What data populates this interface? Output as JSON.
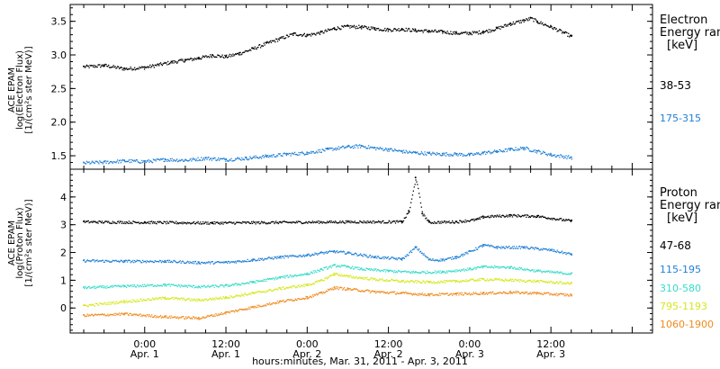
{
  "chart_data": [
    {
      "type": "scatter",
      "panel": "electron",
      "ylabel_lines": [
        "ACE EPAM",
        "log(Electron Flux)",
        "[1/(cm²s ster MeV)]"
      ],
      "ylim": [
        1.3,
        3.75
      ],
      "yticks": [
        1.5,
        2.0,
        2.5,
        3.0,
        3.5
      ],
      "ytick_labels": [
        "1.5",
        "2.0",
        "2.5",
        "3.0",
        "3.5"
      ],
      "legend_title": [
        "Electron",
        "Energy ran",
        "[keV]"
      ],
      "series": [
        {
          "name": "38-53",
          "color": "#000000",
          "points": [
            [
              -9,
              2.83
            ],
            [
              -6,
              2.85
            ],
            [
              -3,
              2.8
            ],
            [
              0,
              2.82
            ],
            [
              2,
              2.86
            ],
            [
              4,
              2.9
            ],
            [
              6,
              2.93
            ],
            [
              8,
              2.96
            ],
            [
              10,
              3.0
            ],
            [
              12,
              2.98
            ],
            [
              14,
              3.03
            ],
            [
              16,
              3.1
            ],
            [
              18,
              3.18
            ],
            [
              20,
              3.25
            ],
            [
              22,
              3.32
            ],
            [
              24,
              3.3
            ],
            [
              26,
              3.34
            ],
            [
              28,
              3.4
            ],
            [
              30,
              3.43
            ],
            [
              32,
              3.42
            ],
            [
              34,
              3.4
            ],
            [
              36,
              3.38
            ],
            [
              38,
              3.39
            ],
            [
              40,
              3.37
            ],
            [
              42,
              3.36
            ],
            [
              44,
              3.35
            ],
            [
              46,
              3.33
            ],
            [
              48,
              3.33
            ],
            [
              50,
              3.35
            ],
            [
              52,
              3.4
            ],
            [
              54,
              3.47
            ],
            [
              56,
              3.52
            ],
            [
              57,
              3.55
            ],
            [
              58,
              3.5
            ],
            [
              60,
              3.42
            ],
            [
              62,
              3.33
            ],
            [
              63,
              3.28
            ]
          ]
        },
        {
          "name": "175-315",
          "color": "#1f7fd6",
          "points": [
            [
              -9,
              1.4
            ],
            [
              -6,
              1.41
            ],
            [
              -3,
              1.43
            ],
            [
              0,
              1.42
            ],
            [
              3,
              1.45
            ],
            [
              6,
              1.44
            ],
            [
              9,
              1.47
            ],
            [
              12,
              1.45
            ],
            [
              15,
              1.47
            ],
            [
              18,
              1.5
            ],
            [
              21,
              1.53
            ],
            [
              24,
              1.55
            ],
            [
              27,
              1.6
            ],
            [
              30,
              1.64
            ],
            [
              32,
              1.65
            ],
            [
              34,
              1.62
            ],
            [
              36,
              1.6
            ],
            [
              38,
              1.57
            ],
            [
              40,
              1.55
            ],
            [
              42,
              1.54
            ],
            [
              44,
              1.53
            ],
            [
              46,
              1.53
            ],
            [
              48,
              1.52
            ],
            [
              50,
              1.55
            ],
            [
              52,
              1.57
            ],
            [
              54,
              1.6
            ],
            [
              56,
              1.62
            ],
            [
              58,
              1.57
            ],
            [
              60,
              1.52
            ],
            [
              63,
              1.48
            ]
          ]
        }
      ]
    },
    {
      "type": "scatter",
      "panel": "proton",
      "ylabel_lines": [
        "ACE EPAM",
        "log(Proton Flux)",
        "[1/(cm²s ster MeV)]"
      ],
      "ylim": [
        -0.9,
        5.0
      ],
      "yticks": [
        0,
        1,
        2,
        3,
        4
      ],
      "ytick_labels": [
        "0",
        "1",
        "2",
        "3",
        "4"
      ],
      "legend_title": [
        "Proton",
        "Energy ran",
        "[keV]"
      ],
      "series": [
        {
          "name": "47-68",
          "color": "#000000",
          "points": [
            [
              -9,
              3.12
            ],
            [
              0,
              3.1
            ],
            [
              10,
              3.08
            ],
            [
              20,
              3.1
            ],
            [
              30,
              3.12
            ],
            [
              38,
              3.12
            ],
            [
              39,
              3.5
            ],
            [
              40,
              4.7
            ],
            [
              41,
              3.4
            ],
            [
              42,
              3.1
            ],
            [
              46,
              3.12
            ],
            [
              49,
              3.2
            ],
            [
              50,
              3.3
            ],
            [
              54,
              3.35
            ],
            [
              58,
              3.32
            ],
            [
              63,
              3.15
            ]
          ]
        },
        {
          "name": "115-195",
          "color": "#1f7fd6",
          "points": [
            [
              -9,
              1.72
            ],
            [
              -3,
              1.7
            ],
            [
              3,
              1.7
            ],
            [
              8,
              1.65
            ],
            [
              12,
              1.66
            ],
            [
              16,
              1.75
            ],
            [
              20,
              1.85
            ],
            [
              24,
              1.92
            ],
            [
              26,
              2.0
            ],
            [
              28,
              2.05
            ],
            [
              30,
              2.0
            ],
            [
              34,
              1.85
            ],
            [
              38,
              1.78
            ],
            [
              40,
              2.2
            ],
            [
              42,
              1.75
            ],
            [
              44,
              1.75
            ],
            [
              46,
              1.85
            ],
            [
              48,
              2.05
            ],
            [
              50,
              2.28
            ],
            [
              52,
              2.2
            ],
            [
              56,
              2.2
            ],
            [
              60,
              2.1
            ],
            [
              63,
              1.95
            ]
          ]
        },
        {
          "name": "310-580",
          "color": "#35dcc8",
          "points": [
            [
              -9,
              0.75
            ],
            [
              -3,
              0.8
            ],
            [
              3,
              0.85
            ],
            [
              8,
              0.78
            ],
            [
              12,
              0.82
            ],
            [
              16,
              0.95
            ],
            [
              20,
              1.12
            ],
            [
              24,
              1.25
            ],
            [
              26,
              1.4
            ],
            [
              28,
              1.55
            ],
            [
              30,
              1.5
            ],
            [
              32,
              1.42
            ],
            [
              36,
              1.35
            ],
            [
              40,
              1.3
            ],
            [
              44,
              1.32
            ],
            [
              48,
              1.42
            ],
            [
              50,
              1.5
            ],
            [
              54,
              1.48
            ],
            [
              58,
              1.35
            ],
            [
              63,
              1.25
            ]
          ]
        },
        {
          "name": "795-1193",
          "color": "#d4e81c",
          "points": [
            [
              -9,
              0.1
            ],
            [
              -3,
              0.25
            ],
            [
              3,
              0.38
            ],
            [
              8,
              0.3
            ],
            [
              12,
              0.4
            ],
            [
              16,
              0.55
            ],
            [
              20,
              0.72
            ],
            [
              24,
              0.85
            ],
            [
              26,
              1.0
            ],
            [
              28,
              1.25
            ],
            [
              30,
              1.15
            ],
            [
              34,
              1.05
            ],
            [
              38,
              0.98
            ],
            [
              42,
              0.95
            ],
            [
              46,
              0.98
            ],
            [
              50,
              1.05
            ],
            [
              54,
              1.02
            ],
            [
              58,
              0.98
            ],
            [
              63,
              0.9
            ]
          ]
        },
        {
          "name": "1060-1900",
          "color": "#f08a1c",
          "points": [
            [
              -9,
              -0.25
            ],
            [
              -3,
              -0.2
            ],
            [
              3,
              -0.3
            ],
            [
              8,
              -0.35
            ],
            [
              12,
              -0.15
            ],
            [
              16,
              0.05
            ],
            [
              20,
              0.25
            ],
            [
              24,
              0.4
            ],
            [
              26,
              0.55
            ],
            [
              28,
              0.75
            ],
            [
              30,
              0.7
            ],
            [
              34,
              0.6
            ],
            [
              38,
              0.55
            ],
            [
              42,
              0.5
            ],
            [
              46,
              0.52
            ],
            [
              50,
              0.55
            ],
            [
              54,
              0.58
            ],
            [
              58,
              0.55
            ],
            [
              63,
              0.48
            ]
          ]
        }
      ]
    }
  ],
  "xaxis": {
    "range_hours": [
      -11,
      75
    ],
    "major_ticks": [
      {
        "hour": 0,
        "time": "0:00",
        "date": "Apr. 1"
      },
      {
        "hour": 12,
        "time": "12:00",
        "date": "Apr. 1"
      },
      {
        "hour": 24,
        "time": "0:00",
        "date": "Apr. 2"
      },
      {
        "hour": 36,
        "time": "12:00",
        "date": "Apr. 2"
      },
      {
        "hour": 48,
        "time": "0:00",
        "date": "Apr. 3"
      },
      {
        "hour": 60,
        "time": "12:00",
        "date": "Apr. 3"
      }
    ],
    "minor_step_hours": 3,
    "label": "hours:minutes, Mar. 31, 2011 - Apr.  3, 2011"
  }
}
